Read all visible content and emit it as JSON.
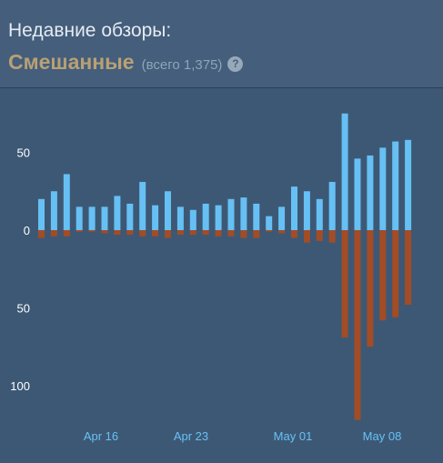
{
  "header": {
    "title": "Недавние обзоры:",
    "summary_label": "Смешанные",
    "review_count_text": "(всего 1,375)",
    "help_icon": "question-mark-icon"
  },
  "colors": {
    "positive": "#66c0f4",
    "negative": "#a34c25",
    "date_labels": "#67c1f5"
  },
  "chart_data": {
    "type": "bar",
    "y_ticks_positive": [
      "50",
      "0"
    ],
    "y_ticks_negative": [
      "50",
      "100"
    ],
    "x_tick_labels": [
      "Apr 16",
      "Apr 23",
      "May 01",
      "May 08"
    ],
    "series": [
      {
        "name": "positive",
        "values": [
          20,
          25,
          36,
          15,
          15,
          15,
          22,
          17,
          31,
          16,
          25,
          15,
          13,
          17,
          16,
          20,
          21,
          17,
          9,
          15,
          28,
          25,
          20,
          31,
          75,
          46,
          48,
          53,
          57,
          58
        ]
      },
      {
        "name": "negative",
        "values": [
          5,
          4,
          4,
          1,
          1,
          2,
          3,
          3,
          4,
          4,
          5,
          3,
          3,
          3,
          4,
          4,
          5,
          5,
          1,
          2,
          5,
          8,
          7,
          8,
          69,
          122,
          75,
          58,
          56,
          48
        ]
      }
    ]
  }
}
